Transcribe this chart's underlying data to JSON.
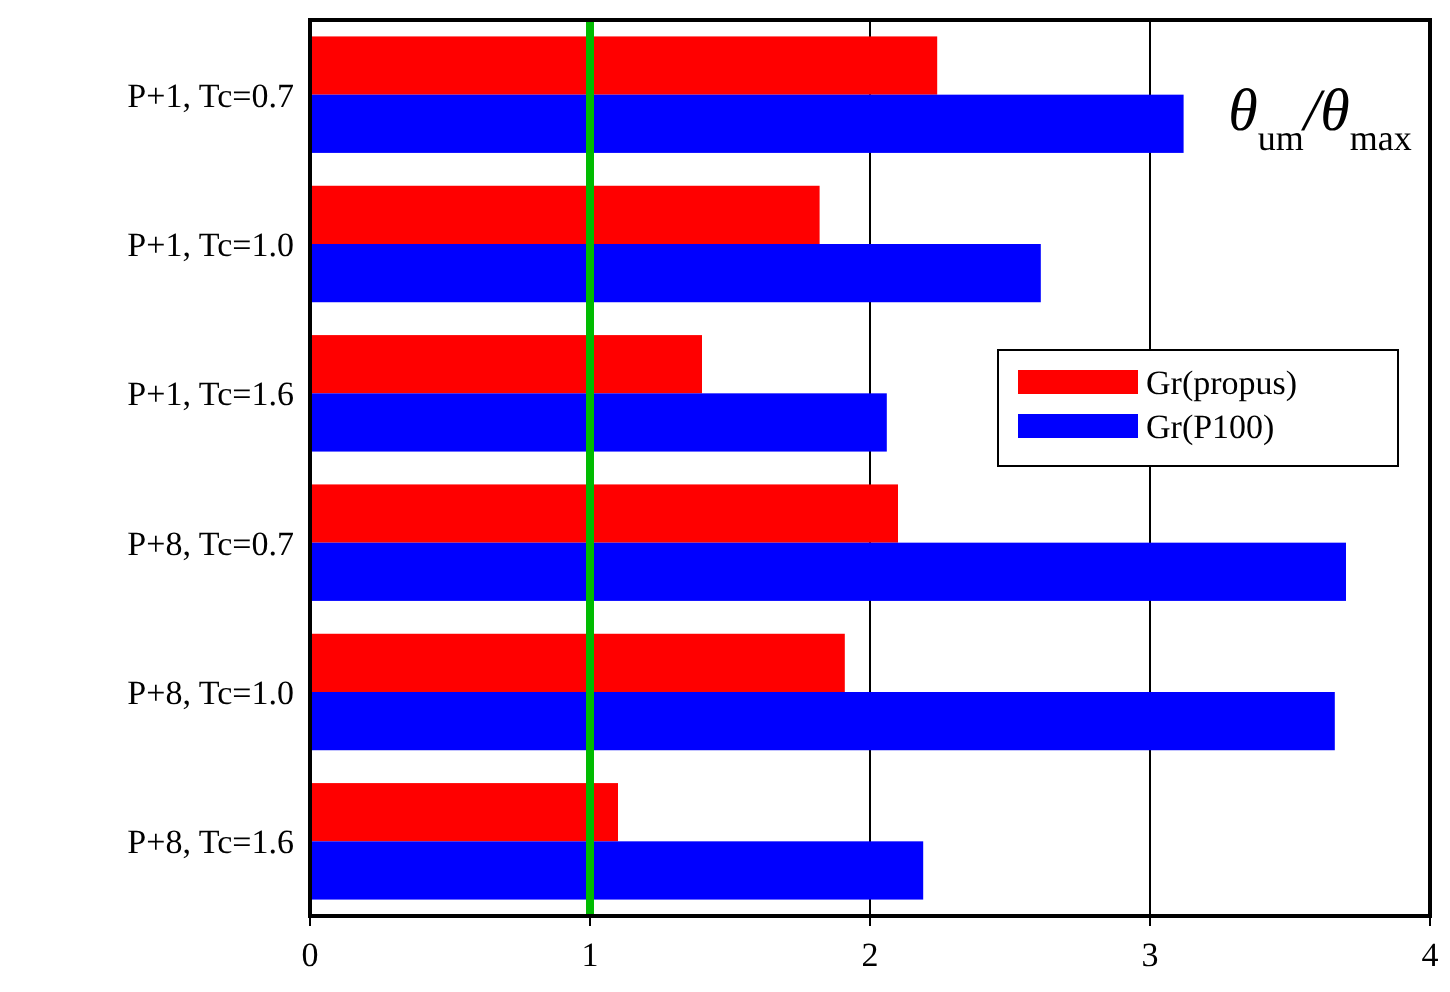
{
  "chart_data": {
    "type": "bar",
    "orientation": "horizontal",
    "categories": [
      "P+1, Tc=0.7",
      "P+1, Tc=1.0",
      "P+1, Tc=1.6",
      "P+8, Tc=0.7",
      "P+8, Tc=1.0",
      "P+8, Tc=1.6"
    ],
    "series": [
      {
        "name": "Gr(propus)",
        "color": "#ff0000",
        "values": [
          2.24,
          1.82,
          1.4,
          2.1,
          1.91,
          1.1
        ]
      },
      {
        "name": "Gr(P100)",
        "color": "#0000ff",
        "values": [
          3.12,
          2.61,
          2.06,
          3.7,
          3.66,
          2.19
        ]
      }
    ],
    "xlim": [
      0,
      4
    ],
    "xticks": [
      0,
      1,
      2,
      3,
      4
    ],
    "grid": "x",
    "legend": "top right",
    "ref_lines": [
      {
        "axis": "x",
        "value": 1,
        "color": "#00bb00"
      }
    ],
    "annotations": [
      "θ$_{um}$/θ$_{max}$"
    ]
  }
}
